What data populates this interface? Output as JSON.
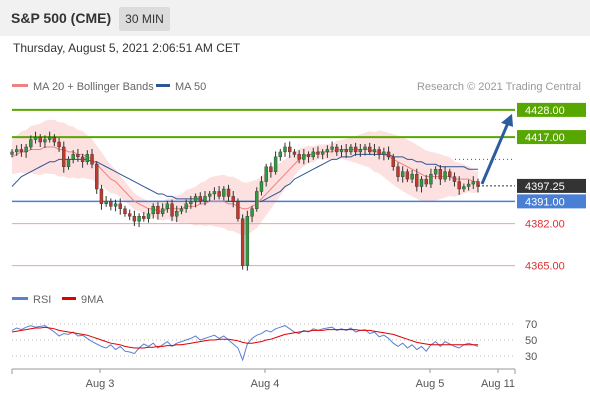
{
  "header": {
    "title": "S&P 500 (CME)",
    "timeframe": "30 MIN"
  },
  "date_text": "Thursday, August 5, 2021 2:06:51 AM CET",
  "colors": {
    "support_resistance_green": "#58a700",
    "blue_level": "#4a7fd6",
    "red_level": "#f2a0a0",
    "bollinger_fill": "#fcd6d6",
    "ma20": "#f08080",
    "ma50": "#2f5597",
    "arrow": "#2a5c9e",
    "candle_up": "#2e9a3c",
    "candle_down": "#c0392b",
    "rsi": "#5b7fd4",
    "rsi_ma": "#e00000"
  },
  "chart_data": [
    {
      "type": "candlestick",
      "legend": [
        {
          "name": "MA 20 + Bollinger Bands",
          "color": "#f08080"
        },
        {
          "name": "MA 50",
          "color": "#2f5597"
        }
      ],
      "legend_placement": "top-left",
      "copyright": "Research © 2021 Trading Central",
      "x_ticks": [
        "Aug 3",
        "Aug 4",
        "Aug 5",
        "Aug 11"
      ],
      "ylim": [
        4360,
        4432
      ],
      "current_price": "4397.25",
      "levels": [
        {
          "value": 4428.0,
          "label": "4428.00",
          "kind": "resistance"
        },
        {
          "value": 4417.0,
          "label": "4417.00",
          "kind": "resistance"
        },
        {
          "value": 4391.0,
          "label": "4391.00",
          "kind": "pivot"
        },
        {
          "value": 4382.0,
          "label": "4382.00",
          "kind": "support"
        },
        {
          "value": 4365.0,
          "label": "4365.00",
          "kind": "support"
        }
      ],
      "close": [
        4411,
        4412,
        4411,
        4413,
        4416,
        4417,
        4415,
        4416,
        4417,
        4415,
        4413,
        4405,
        4408,
        4410,
        4409,
        4407,
        4410,
        4406,
        4396,
        4390,
        4391,
        4389,
        4390,
        4388,
        4386,
        4385,
        4383,
        4385,
        4384,
        4386,
        4389,
        4386,
        4388,
        4390,
        4385,
        4387,
        4388,
        4390,
        4391,
        4393,
        4391,
        4393,
        4394,
        4395,
        4393,
        4396,
        4393,
        4391,
        4384,
        4365,
        4385,
        4388,
        4395,
        4399,
        4405,
        4403,
        4409,
        4411,
        4413,
        4411,
        4410,
        4408,
        4410,
        4409,
        4411,
        4410,
        4411,
        4412,
        4413,
        4411,
        4412,
        4411,
        4413,
        4411,
        4412,
        4413,
        4411,
        4412,
        4410,
        4411,
        4409,
        4405,
        4401,
        4403,
        4400,
        4402,
        4397,
        4400,
        4398,
        4402,
        4404,
        4400,
        4403,
        4401,
        4399,
        4396,
        4397,
        4398,
        4399,
        4397
      ],
      "ma20": [
        4409,
        4410,
        4411,
        4411,
        4412,
        4412,
        4412,
        4413,
        4413,
        4413,
        4412,
        4412,
        4411,
        4411,
        4410,
        4410,
        4409,
        4408,
        4406,
        4404,
        4402,
        4400,
        4399,
        4397,
        4395,
        4393,
        4391,
        4390,
        4389,
        4388,
        4388,
        4387,
        4387,
        4388,
        4388,
        4388,
        4388,
        4389,
        4389,
        4389,
        4390,
        4390,
        4391,
        4391,
        4391,
        4391,
        4390,
        4390,
        4389,
        4388,
        4388,
        4389,
        4390,
        4392,
        4394,
        4396,
        4398,
        4400,
        4402,
        4404,
        4406,
        4408,
        4409,
        4410,
        4410,
        4411,
        4411,
        4411,
        4411,
        4412,
        4412,
        4412,
        4412,
        4412,
        4412,
        4412,
        4412,
        4411,
        4411,
        4410,
        4409,
        4408,
        4407,
        4406,
        4405,
        4404,
        4403,
        4402,
        4401,
        4401,
        4401,
        4401,
        4401,
        4401,
        4400,
        4400,
        4400,
        4400,
        4399,
        4399
      ],
      "ma50": [
        4397,
        4399,
        4401,
        4402,
        4403,
        4404,
        4405,
        4406,
        4407,
        4407,
        4408,
        4408,
        4408,
        4408,
        4408,
        4408,
        4408,
        4407,
        4407,
        4406,
        4405,
        4404,
        4403,
        4402,
        4401,
        4400,
        4399,
        4398,
        4397,
        4396,
        4395,
        4394,
        4394,
        4393,
        4393,
        4392,
        4392,
        4392,
        4392,
        4392,
        4392,
        4391,
        4391,
        4391,
        4391,
        4391,
        4391,
        4391,
        4391,
        4391,
        4391,
        4391,
        4391,
        4391,
        4392,
        4393,
        4394,
        4395,
        4397,
        4398,
        4400,
        4401,
        4402,
        4403,
        4404,
        4405,
        4406,
        4407,
        4408,
        4408,
        4409,
        4409,
        4409,
        4410,
        4410,
        4410,
        4410,
        4410,
        4410,
        4410,
        4410,
        4409,
        4409,
        4409,
        4408,
        4408,
        4407,
        4407,
        4406,
        4406,
        4406,
        4405,
        4405,
        4405,
        4405,
        4405,
        4405,
        4404,
        4404,
        4404
      ]
    },
    {
      "type": "line",
      "legend": [
        {
          "name": "RSI",
          "color": "#5b7fd4"
        },
        {
          "name": "9MA",
          "color": "#e00000"
        }
      ],
      "y_ticks": [
        70,
        50,
        30
      ],
      "ylim": [
        20,
        80
      ],
      "series": [
        {
          "name": "RSI",
          "values": [
            62,
            65,
            63,
            66,
            68,
            66,
            67,
            68,
            64,
            60,
            55,
            58,
            57,
            60,
            55,
            56,
            52,
            48,
            45,
            42,
            40,
            44,
            38,
            42,
            36,
            35,
            33,
            40,
            45,
            42,
            46,
            40,
            44,
            48,
            42,
            46,
            48,
            50,
            52,
            55,
            50,
            52,
            54,
            56,
            52,
            55,
            50,
            45,
            40,
            25,
            45,
            52,
            56,
            58,
            62,
            60,
            64,
            66,
            68,
            64,
            60,
            58,
            62,
            60,
            64,
            62,
            64,
            65,
            66,
            62,
            64,
            62,
            65,
            60,
            62,
            63,
            58,
            60,
            54,
            56,
            52,
            46,
            42,
            46,
            40,
            44,
            38,
            42,
            36,
            44,
            48,
            42,
            48,
            45,
            42,
            40,
            44,
            46,
            44,
            42
          ]
        },
        {
          "name": "9MA",
          "values": [
            60,
            61,
            62,
            63,
            64,
            65,
            65,
            66,
            65,
            64,
            62,
            61,
            60,
            59,
            58,
            57,
            56,
            54,
            52,
            50,
            48,
            46,
            45,
            44,
            42,
            41,
            40,
            40,
            40,
            41,
            41,
            42,
            42,
            43,
            43,
            44,
            44,
            45,
            46,
            47,
            48,
            49,
            50,
            50,
            51,
            51,
            51,
            50,
            49,
            47,
            46,
            46,
            47,
            48,
            50,
            51,
            53,
            55,
            57,
            58,
            59,
            60,
            61,
            61,
            62,
            62,
            62,
            63,
            63,
            63,
            63,
            63,
            63,
            63,
            62,
            62,
            62,
            61,
            60,
            59,
            58,
            57,
            55,
            53,
            51,
            49,
            47,
            46,
            45,
            44,
            44,
            44,
            44,
            44,
            44,
            44,
            44,
            44,
            44,
            44
          ]
        }
      ]
    }
  ]
}
